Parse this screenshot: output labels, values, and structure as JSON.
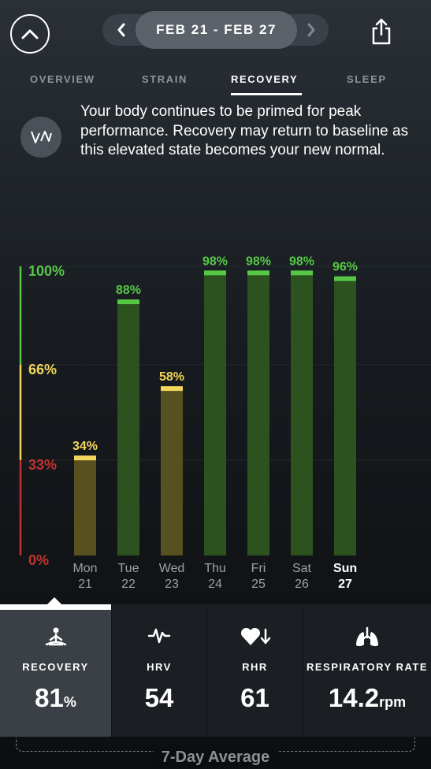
{
  "header": {
    "date_range": "FEB 21 - FEB 27",
    "icons": {
      "collapse": "chevron-up-icon",
      "prev": "chevron-left-icon",
      "next": "chevron-right-icon",
      "share": "share-icon"
    }
  },
  "tabs": [
    {
      "label": "OVERVIEW",
      "active": false
    },
    {
      "label": "STRAIN",
      "active": false
    },
    {
      "label": "RECOVERY",
      "active": true
    },
    {
      "label": "SLEEP",
      "active": false
    }
  ],
  "message": "Your body continues to be primed for peak performance. Recovery may return to baseline as this elevated state becomes your new normal.",
  "colors": {
    "green": "#56c846",
    "yellow": "#f4d65a",
    "red": "#c0332f",
    "bar_green": "#2c5220",
    "bar_yellow": "#57501f"
  },
  "chart_data": {
    "type": "bar",
    "categories": [
      "Mon 21",
      "Tue 22",
      "Wed 23",
      "Thu 24",
      "Fri 25",
      "Sat 26",
      "Sun 27"
    ],
    "day_names": [
      "Mon",
      "Tue",
      "Wed",
      "Thu",
      "Fri",
      "Sat",
      "Sun"
    ],
    "day_numbers": [
      "21",
      "22",
      "23",
      "24",
      "25",
      "26",
      "27"
    ],
    "values": [
      34,
      88,
      58,
      98,
      98,
      98,
      96
    ],
    "value_labels": [
      "34%",
      "88%",
      "58%",
      "98%",
      "98%",
      "98%",
      "96%"
    ],
    "y_ticks": [
      "0%",
      "33%",
      "66%",
      "100%"
    ],
    "ylim": [
      0,
      100
    ],
    "highlighted_day": "Sun 27"
  },
  "tiles": [
    {
      "label": "RECOVERY",
      "value": "81",
      "unit": "%",
      "icon": "meditation-icon",
      "selected": true
    },
    {
      "label": "HRV",
      "value": "54",
      "unit": "",
      "icon": "heartbeat-icon",
      "selected": false
    },
    {
      "label": "RHR",
      "value": "61",
      "unit": "",
      "icon": "heart-down-icon",
      "selected": false
    },
    {
      "label": "RESPIRATORY RATE",
      "value": "14.2",
      "unit": "rpm",
      "icon": "lungs-icon",
      "selected": false
    }
  ],
  "footer": {
    "label": "7-Day Average"
  }
}
